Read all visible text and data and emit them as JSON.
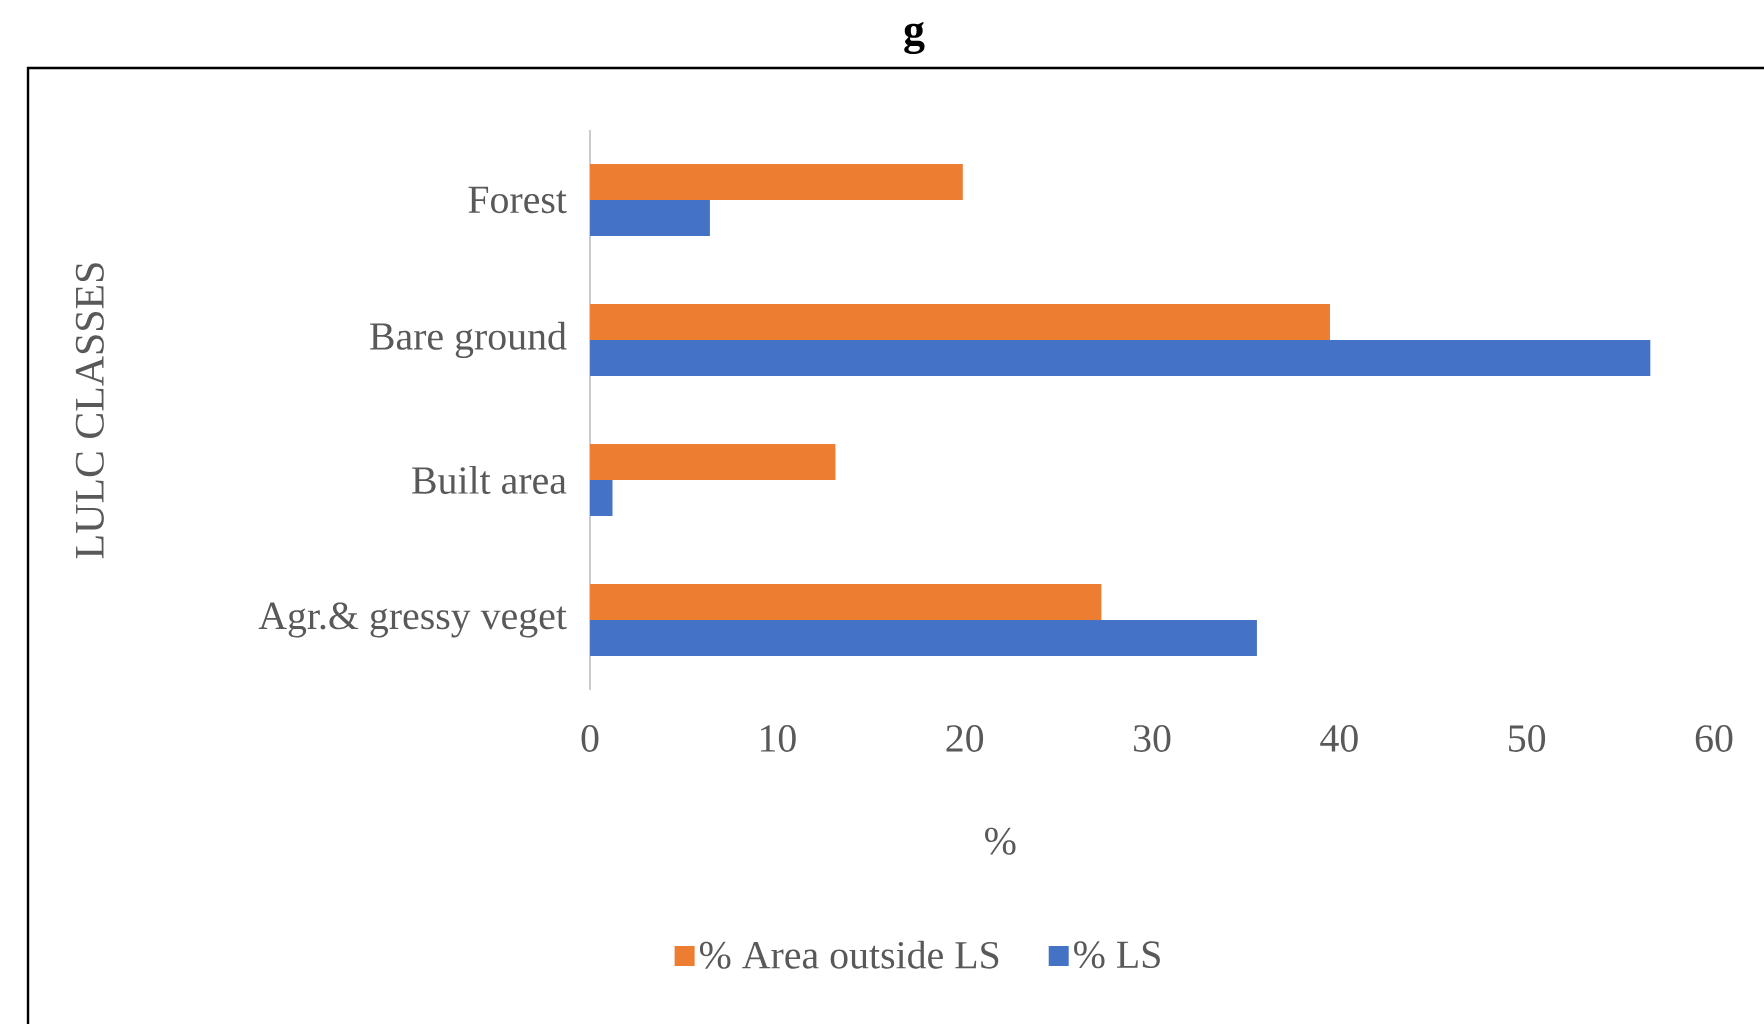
{
  "chart_data": {
    "type": "bar",
    "orientation": "horizontal",
    "title": "g",
    "xlabel": "%",
    "ylabel": "LULC CLASSES",
    "categories": [
      "Forest",
      "Bare ground",
      "Built area",
      "Agr.& gressy veget"
    ],
    "series": [
      {
        "name": "% Area outside LS",
        "color": "#ed7d31",
        "values": [
          19.9,
          39.5,
          13.1,
          27.3
        ]
      },
      {
        "name": "% LS",
        "color": "#4472c4",
        "values": [
          6.4,
          56.6,
          1.2,
          35.6
        ]
      }
    ],
    "xlim": [
      0,
      60
    ],
    "xticks": [
      0,
      10,
      20,
      30,
      40,
      50,
      60
    ],
    "legend": "bottom"
  }
}
